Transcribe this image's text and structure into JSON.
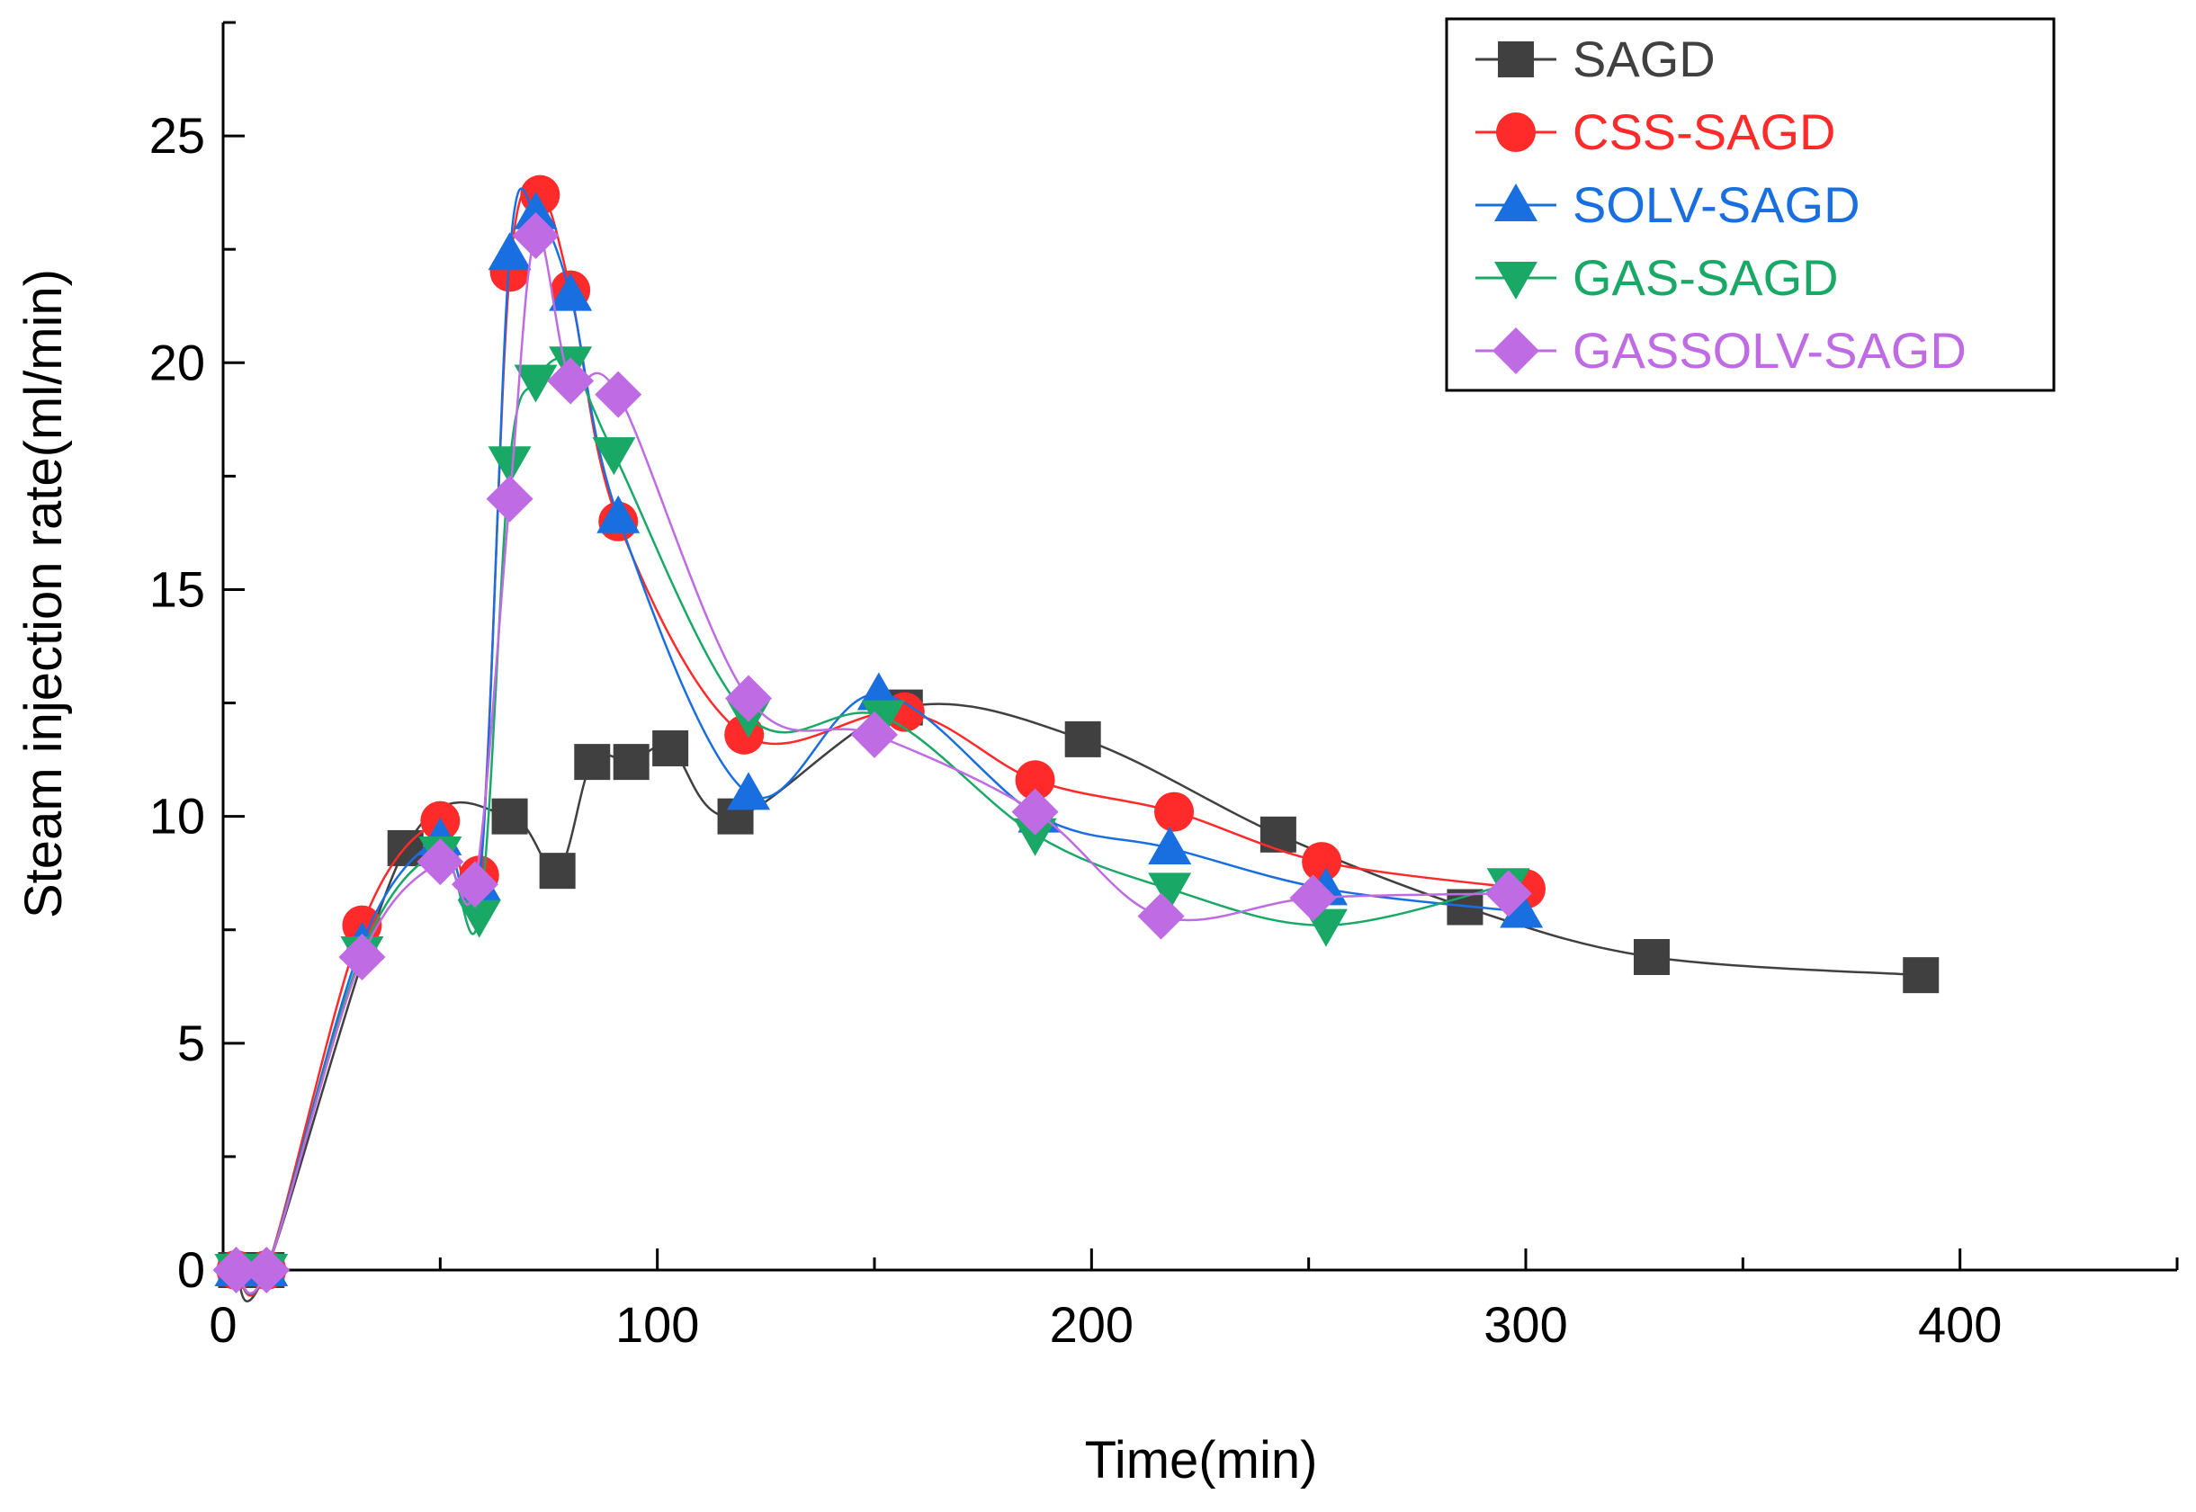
{
  "chart_data": {
    "type": "line",
    "title": "",
    "xlabel": "Time(min)",
    "ylabel": "Steam injection rate(ml/min)",
    "xlim": [
      0,
      450
    ],
    "ylim": [
      0,
      27.5
    ],
    "xticks": [
      0,
      100,
      200,
      300,
      400
    ],
    "xtick_labels": [
      "0",
      "100",
      "200",
      "300",
      "400"
    ],
    "yticks": [
      0,
      5,
      10,
      15,
      20,
      25
    ],
    "ytick_labels": [
      "0",
      "5",
      "10",
      "15",
      "20",
      "25"
    ],
    "grid": false,
    "legend_position": "top-right",
    "series": [
      {
        "name": "SAGD",
        "color": "#404040",
        "marker": "square",
        "x": [
          3,
          10,
          42,
          66,
          77,
          85,
          94,
          103,
          118,
          157,
          198,
          243,
          286,
          329,
          391
        ],
        "y": [
          0,
          0,
          9.3,
          10.0,
          8.8,
          11.2,
          11.2,
          11.5,
          10.0,
          12.4,
          11.7,
          9.6,
          8.0,
          6.9,
          6.5
        ]
      },
      {
        "name": "CSS-SAGD",
        "color": "#ff2a2a",
        "marker": "circle",
        "x": [
          3,
          10,
          32,
          50,
          59,
          66,
          73,
          80,
          91,
          120,
          157,
          187,
          219,
          253,
          300
        ],
        "y": [
          0,
          0,
          7.6,
          9.9,
          8.7,
          22.0,
          23.7,
          21.6,
          16.5,
          11.8,
          12.3,
          10.8,
          10.1,
          9.0,
          8.4
        ]
      },
      {
        "name": "SOLV-SAGD",
        "color": "#1a6fe0",
        "marker": "triangle-up",
        "x": [
          3,
          10,
          32,
          50,
          59,
          66,
          72,
          80,
          91,
          121,
          151,
          188,
          218,
          254,
          299
        ],
        "y": [
          0,
          0,
          7.2,
          9.5,
          8.5,
          22.4,
          23.3,
          21.5,
          16.6,
          10.5,
          12.7,
          10.0,
          9.3,
          8.4,
          7.9
        ]
      },
      {
        "name": "GAS-SAGD",
        "color": "#1aa867",
        "marker": "triangle-down",
        "x": [
          3,
          10,
          32,
          50,
          59,
          66,
          72,
          80,
          90,
          121,
          152,
          187,
          218,
          254,
          296
        ],
        "y": [
          0,
          0,
          7.0,
          9.2,
          7.8,
          17.8,
          19.6,
          20.0,
          18.0,
          12.2,
          12.2,
          9.6,
          8.4,
          7.6,
          8.5
        ]
      },
      {
        "name": "GASSOLV-SAGD",
        "color": "#bf6be3",
        "marker": "diamond",
        "x": [
          3,
          10,
          32,
          50,
          58,
          66,
          72,
          80,
          91,
          121,
          150,
          187,
          216,
          251,
          296
        ],
        "y": [
          0,
          0,
          6.9,
          9.0,
          8.5,
          17.0,
          22.8,
          19.6,
          19.3,
          12.6,
          11.8,
          10.1,
          7.8,
          8.2,
          8.3
        ]
      }
    ]
  }
}
